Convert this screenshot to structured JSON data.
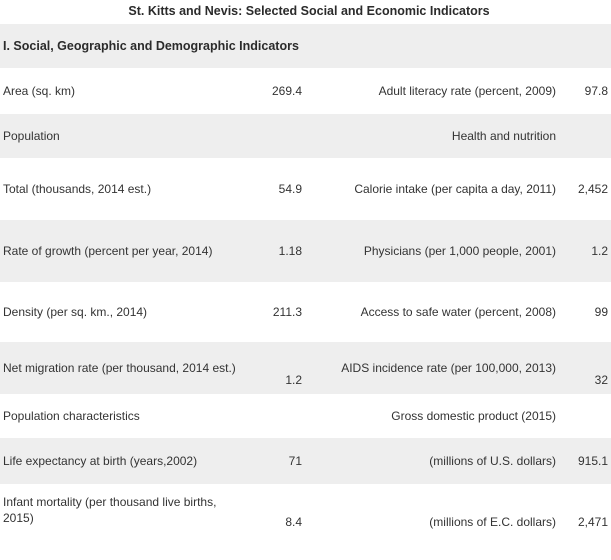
{
  "title": "St. Kitts and Nevis: Selected Social and Economic Indicators",
  "section": "I. Social, Geographic and Demographic Indicators",
  "rows": [
    {
      "left_label": "Area (sq. km)",
      "left_value": "269.4",
      "right_label": "Adult literacy rate (percent, 2009)",
      "right_value": "97.8"
    },
    {
      "left_label": "Population",
      "left_value": "",
      "right_label": "Health and nutrition",
      "right_value": ""
    },
    {
      "left_label": "Total (thousands, 2014 est.)",
      "left_value": "54.9",
      "right_label": "Calorie intake (per capita a day, 2011)",
      "right_value": "2,452"
    },
    {
      "left_label": "Rate of growth (percent per year, 2014)",
      "left_value": "1.18",
      "right_label": "Physicians (per 1,000 people, 2001)",
      "right_value": "1.2"
    },
    {
      "left_label": "Density (per sq. km., 2014)",
      "left_value": "211.3",
      "right_label": "Access to safe water (percent, 2008)",
      "right_value": "99"
    },
    {
      "left_label": "Net migration rate (per thousand, 2014 est.)",
      "left_value": "1.2",
      "right_label": "AIDS incidence rate (per 100,000, 2013)",
      "right_value": "32"
    },
    {
      "left_label": "Population characteristics",
      "left_value": "",
      "right_label": "Gross domestic product (2015)",
      "right_value": ""
    },
    {
      "left_label": "Life expectancy at birth (years,2002)",
      "left_value": "71",
      "right_label": "(millions of U.S. dollars)",
      "right_value": "915.1"
    },
    {
      "left_label": "Infant mortality (per thousand live births, 2015)",
      "left_value": "8.4",
      "right_label": "(millions of E.C. dollars)",
      "right_value": "2,471"
    }
  ]
}
